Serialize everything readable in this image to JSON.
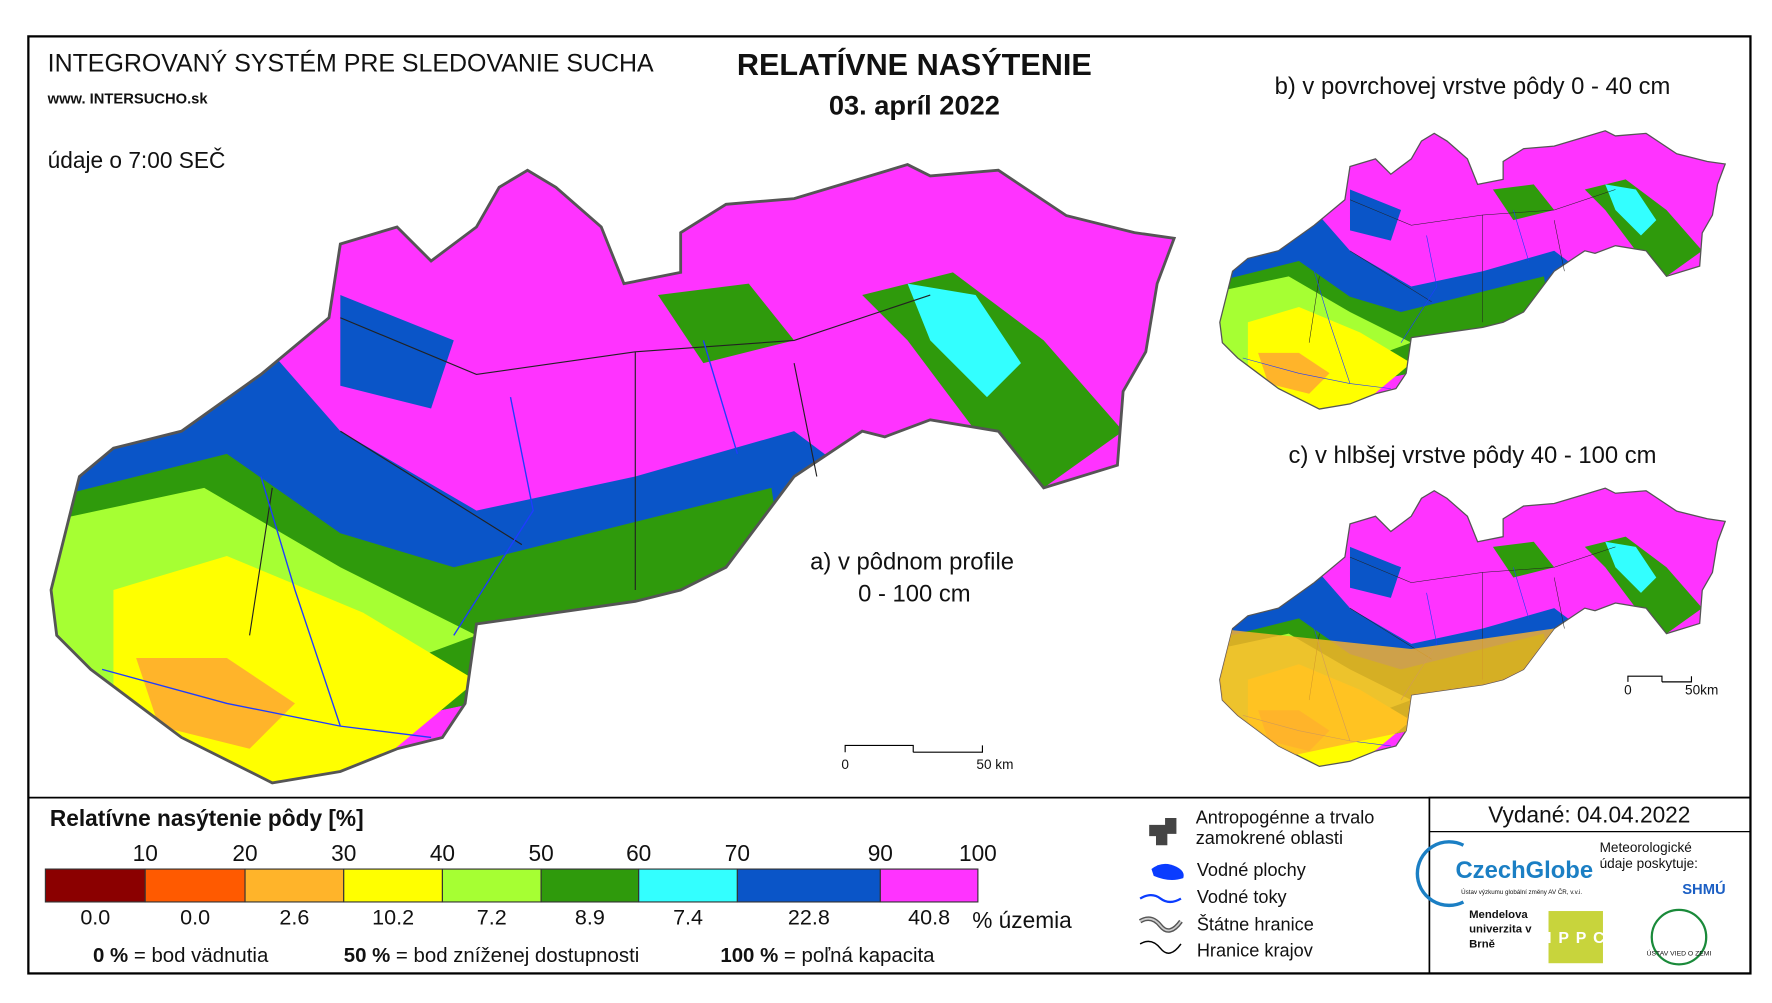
{
  "header": {
    "system_title": "INTEGROVANÝ SYSTÉM PRE SLEDOVANIE SUCHA",
    "website": "www. INTERSUCHO.sk",
    "title": "RELATÍVNE NASÝTENIE",
    "date": "03. apríl 2022",
    "time_note": "údaje o 7:00 SEČ"
  },
  "maps": {
    "a": {
      "label": "a) v pôdnom profile",
      "depth": "0 - 100 cm",
      "scale_start": "0",
      "scale_end": "50 km"
    },
    "b": {
      "label": "b) v povrchovej vrstve pôdy 0 - 40 cm"
    },
    "c": {
      "label": "c) v hlbšej vrstve pôdy 40 - 100 cm",
      "scale_start": "0",
      "scale_end": "50km"
    }
  },
  "legend": {
    "title": "Relatívne nasýtenie pôdy [%]",
    "bounds": [
      "10",
      "20",
      "30",
      "40",
      "50",
      "60",
      "70",
      "90",
      "100"
    ],
    "colors": [
      "#8b0000",
      "#ff5a00",
      "#ffb42a",
      "#ffff00",
      "#a6ff33",
      "#2f9a0c",
      "#33ffff",
      "#0a55c8",
      "#ff33ff"
    ],
    "shares": [
      "0.0",
      "0.0",
      "2.6",
      "10.2",
      "7.2",
      "8.9",
      "7.4",
      "22.8",
      "40.8"
    ],
    "shares_unit": "% územia",
    "definitions": [
      {
        "key": "0 %",
        "text": "= bod vädnutia"
      },
      {
        "key": "50 %",
        "text": "= bod zníženej dostupnosti"
      },
      {
        "key": "100 %",
        "text": "= poľná kapacita"
      }
    ]
  },
  "symbols": [
    "Antropogénne a trvalo zamokrené oblasti",
    "Vodné plochy",
    "Vodné toky",
    "Štátne hranice",
    "Hranice krajov"
  ],
  "footer": {
    "issued": "Vydané: 04.04.2022",
    "czechglobe": "CzechGlobe",
    "czechglobe_sub": "Ústav výzkumu globální změny AV ČR, v.v.i.",
    "met_note": "Meteorologické údaje poskytuje:",
    "shmu": "SHMÚ",
    "mendel": "Mendelova univerzita v Brně",
    "nppc": "NPPC",
    "uvz": "ÚSTAV VIED O ZEMI"
  }
}
